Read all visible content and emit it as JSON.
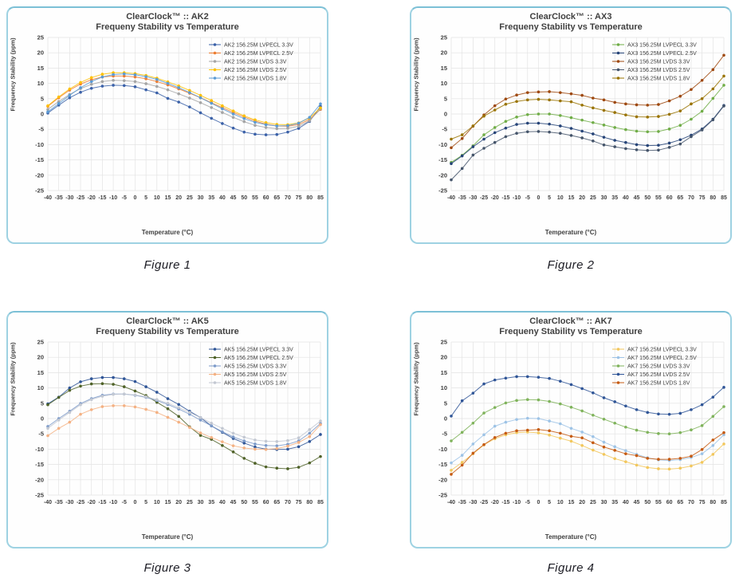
{
  "page": {
    "background": "#ffffff",
    "panel_border_color": "#9ed2e2",
    "grid_color": "#e3e3e3",
    "text_color": "#404040"
  },
  "figures": [
    {
      "caption": "Figure 1"
    },
    {
      "caption": "Figure 2"
    },
    {
      "caption": "Figure 3"
    },
    {
      "caption": "Figure 4"
    }
  ],
  "chart_data": [
    {
      "type": "line",
      "title": "ClearClock™ :: AK2",
      "subtitle": "Frequeny Stability vs Temperature",
      "xlabel": "Temperature (°C)",
      "ylabel": "Frequency Stability (ppm)",
      "xlim": [
        -40,
        85
      ],
      "ylim": [
        -25,
        25
      ],
      "ytick_step": 5,
      "xtick_step": 5,
      "grid": true,
      "legend_position": "top-right",
      "x": [
        -40,
        -35,
        -30,
        -25,
        -20,
        -15,
        -10,
        -5,
        0,
        5,
        10,
        15,
        20,
        25,
        30,
        35,
        40,
        45,
        50,
        55,
        60,
        65,
        70,
        75,
        80,
        85
      ],
      "series": [
        {
          "name": "AK2 156.25M LVPECL 3.3V",
          "color": "#3b61a8",
          "values": [
            0.3,
            2.9,
            5.3,
            7.1,
            8.4,
            9.1,
            9.4,
            9.3,
            8.9,
            7.9,
            6.9,
            5.1,
            3.9,
            2.3,
            0.4,
            -1.4,
            -3.1,
            -4.6,
            -5.9,
            -6.6,
            -6.8,
            -6.7,
            -5.9,
            -4.7,
            -2.4,
            2.5
          ]
        },
        {
          "name": "AK2 156.25M LVPECL 2.5V",
          "color": "#ed7d31",
          "values": [
            2.5,
            5.3,
            7.8,
            9.8,
            11.2,
            12.1,
            12.4,
            12.4,
            12.1,
            11.5,
            10.6,
            9.5,
            8.2,
            6.8,
            5.3,
            3.7,
            2.1,
            0.5,
            -1.0,
            -2.3,
            -3.3,
            -3.9,
            -4.0,
            -3.4,
            -1.8,
            1.5
          ]
        },
        {
          "name": "AK2 156.25M LVDS 3.3V",
          "color": "#a5a5a5",
          "values": [
            1.5,
            4.1,
            6.4,
            8.3,
            9.7,
            10.6,
            11.0,
            10.9,
            10.6,
            9.9,
            9.0,
            7.9,
            6.6,
            5.2,
            3.7,
            2.1,
            0.5,
            -1.1,
            -2.5,
            -3.7,
            -4.4,
            -4.8,
            -4.7,
            -4.0,
            -2.2,
            1.7
          ]
        },
        {
          "name": "AK2 156.25M LVDS 2.5V",
          "color": "#ffc000",
          "values": [
            2.7,
            5.6,
            8.2,
            10.3,
            11.9,
            13.0,
            13.5,
            13.5,
            13.2,
            12.6,
            11.7,
            10.5,
            9.2,
            7.7,
            6.1,
            4.4,
            2.7,
            1.0,
            -0.6,
            -1.9,
            -2.8,
            -3.4,
            -3.5,
            -2.9,
            -1.3,
            2.0
          ]
        },
        {
          "name": "AK2 156.25M LVDS 1.8V",
          "color": "#5b9bd5",
          "values": [
            0.7,
            3.4,
            6.1,
            8.6,
            10.6,
            12.1,
            12.9,
            13.1,
            12.8,
            12.2,
            11.3,
            10.0,
            8.6,
            7.0,
            5.3,
            3.5,
            1.7,
            0.0,
            -1.5,
            -2.7,
            -3.5,
            -3.9,
            -3.8,
            -3.0,
            -1.1,
            3.3
          ]
        }
      ]
    },
    {
      "type": "line",
      "title": "ClearClock™ :: AX3",
      "subtitle": "Frequeny Stability vs Temperature",
      "xlabel": "Temperature (°C)",
      "ylabel": "Frequency Stability (ppm)",
      "xlim": [
        -40,
        85
      ],
      "ylim": [
        -25,
        25
      ],
      "ytick_step": 5,
      "xtick_step": 5,
      "grid": true,
      "legend_position": "top-right",
      "x": [
        -40,
        -35,
        -30,
        -25,
        -20,
        -15,
        -10,
        -5,
        0,
        5,
        10,
        15,
        20,
        25,
        30,
        35,
        40,
        45,
        50,
        55,
        60,
        65,
        70,
        75,
        80,
        85
      ],
      "series": [
        {
          "name": "AX3 156.25M LVPECL 3.3V",
          "color": "#70ad47",
          "values": [
            -15.8,
            -13.5,
            -10.4,
            -6.8,
            -4.4,
            -2.4,
            -1.0,
            -0.2,
            0.0,
            0.0,
            -0.5,
            -1.2,
            -2.0,
            -2.8,
            -3.6,
            -4.4,
            -5.1,
            -5.6,
            -5.8,
            -5.7,
            -4.9,
            -3.7,
            -1.7,
            0.9,
            5.1,
            9.4
          ]
        },
        {
          "name": "AX3 156.25M LVPECL 2.5V",
          "color": "#264478",
          "values": [
            -16.2,
            -13.7,
            -10.7,
            -8.2,
            -6.1,
            -4.6,
            -3.4,
            -3.0,
            -3.0,
            -3.3,
            -3.9,
            -4.7,
            -5.6,
            -6.5,
            -7.6,
            -8.6,
            -9.3,
            -10.0,
            -10.3,
            -10.2,
            -9.5,
            -8.4,
            -6.9,
            -4.9,
            -1.7,
            2.8
          ]
        },
        {
          "name": "AX3 156.25M LVDS 3.3V",
          "color": "#9e480e",
          "values": [
            -11.0,
            -8.0,
            -4.0,
            -0.3,
            2.7,
            4.9,
            6.2,
            7.0,
            7.2,
            7.3,
            7.0,
            6.6,
            6.1,
            5.2,
            4.6,
            3.8,
            3.3,
            3.0,
            2.9,
            3.1,
            4.3,
            5.8,
            8.0,
            11.0,
            14.5,
            19.2
          ]
        },
        {
          "name": "AX3 156.25M LVDS 2.5V",
          "color": "#44546a",
          "values": [
            -21.5,
            -17.8,
            -13.4,
            -11.2,
            -9.3,
            -7.4,
            -6.3,
            -5.8,
            -5.7,
            -5.9,
            -6.3,
            -7.0,
            -7.8,
            -8.8,
            -10.1,
            -10.7,
            -11.3,
            -11.7,
            -11.9,
            -11.8,
            -10.9,
            -9.8,
            -7.4,
            -5.2,
            -1.9,
            2.6
          ]
        },
        {
          "name": "AX3 156.25M LVDS 1.8V",
          "color": "#997300",
          "values": [
            -8.2,
            -6.8,
            -3.9,
            -0.7,
            1.3,
            3.2,
            4.1,
            4.6,
            4.8,
            4.6,
            4.3,
            4.0,
            2.9,
            2.0,
            1.2,
            0.5,
            -0.3,
            -0.9,
            -1.0,
            -0.8,
            -0.1,
            1.0,
            3.3,
            5.0,
            8.2,
            12.4
          ]
        }
      ]
    },
    {
      "type": "line",
      "title": "ClearClock™ :: AK5",
      "subtitle": "Frequeny Stability vs Temperature",
      "xlabel": "Temperature (°C)",
      "ylabel": "Frequency Stability (ppm)",
      "xlim": [
        -40,
        85
      ],
      "ylim": [
        -25,
        25
      ],
      "ytick_step": 5,
      "xtick_step": 5,
      "grid": true,
      "legend_position": "top-right",
      "x": [
        -40,
        -35,
        -30,
        -25,
        -20,
        -15,
        -10,
        -5,
        0,
        5,
        10,
        15,
        20,
        25,
        30,
        35,
        40,
        45,
        50,
        55,
        60,
        65,
        70,
        75,
        80,
        85
      ],
      "series": [
        {
          "name": "AK5 156.25M LVPECL 3.3V",
          "color": "#2f5597",
          "values": [
            4.8,
            7.0,
            10.0,
            12.0,
            13.0,
            13.4,
            13.4,
            13.0,
            12.1,
            10.4,
            8.6,
            6.5,
            4.6,
            2.4,
            0.3,
            -2.4,
            -4.5,
            -6.5,
            -8.0,
            -9.3,
            -10.0,
            -10.1,
            -10.0,
            -9.2,
            -7.5,
            -5.2
          ]
        },
        {
          "name": "AK5 156.25M LVPECL 2.5V",
          "color": "#4f6228",
          "values": [
            4.5,
            6.9,
            9.2,
            10.6,
            11.3,
            11.4,
            11.2,
            10.4,
            9.0,
            7.5,
            5.3,
            3.2,
            0.7,
            -2.7,
            -5.5,
            -6.8,
            -8.8,
            -10.9,
            -13.0,
            -14.6,
            -15.8,
            -16.2,
            -16.4,
            -15.9,
            -14.5,
            -12.4
          ]
        },
        {
          "name": "AK5 156.25M LVDS 3.3V",
          "color": "#7c9ac9",
          "values": [
            -2.6,
            0.0,
            2.4,
            4.9,
            6.5,
            7.6,
            8.0,
            8.0,
            7.6,
            6.9,
            5.9,
            4.6,
            3.1,
            1.4,
            -0.5,
            -2.4,
            -4.3,
            -6.0,
            -7.3,
            -8.3,
            -8.8,
            -8.9,
            -8.4,
            -7.3,
            -4.8,
            -1.6
          ]
        },
        {
          "name": "AK5 156.25M LVDS 2.5V",
          "color": "#f4b183",
          "values": [
            -5.6,
            -3.2,
            -1.2,
            1.4,
            2.9,
            3.9,
            4.2,
            4.2,
            3.8,
            3.0,
            2.0,
            0.4,
            -1.2,
            -2.9,
            -4.7,
            -6.2,
            -7.6,
            -8.9,
            -9.6,
            -10.0,
            -10.1,
            -9.8,
            -9.0,
            -7.8,
            -5.9,
            -2.0
          ]
        },
        {
          "name": "AK5 156.25M LVDS 1.8V",
          "color": "#c3c8d2",
          "values": [
            -3.2,
            -0.5,
            2.0,
            4.5,
            6.2,
            7.3,
            7.9,
            8.0,
            7.7,
            7.1,
            6.2,
            5.0,
            3.6,
            2.0,
            0.3,
            -1.5,
            -3.2,
            -4.8,
            -6.1,
            -7.0,
            -7.4,
            -7.5,
            -7.2,
            -6.3,
            -3.6,
            -0.8
          ]
        }
      ]
    },
    {
      "type": "line",
      "title": "ClearClock™ :: AK7",
      "subtitle": "Frequeny Stability vs Temperature",
      "xlabel": "Temperature (°C)",
      "ylabel": "Frequency Stability (ppm)",
      "xlim": [
        -40,
        85
      ],
      "ylim": [
        -25,
        25
      ],
      "ytick_step": 5,
      "xtick_step": 5,
      "grid": true,
      "legend_position": "top-right",
      "x": [
        -40,
        -35,
        -30,
        -25,
        -20,
        -15,
        -10,
        -5,
        0,
        5,
        10,
        15,
        20,
        25,
        30,
        35,
        40,
        45,
        50,
        55,
        60,
        65,
        70,
        75,
        80,
        85
      ],
      "series": [
        {
          "name": "AK7 156.25M LVPECL 3.3V",
          "color": "#f2c75c",
          "values": [
            -16.9,
            -14.3,
            -11.5,
            -8.6,
            -6.6,
            -5.3,
            -4.6,
            -4.4,
            -4.7,
            -5.4,
            -6.4,
            -7.4,
            -8.8,
            -10.3,
            -11.7,
            -13.1,
            -14.1,
            -15.2,
            -16.0,
            -16.4,
            -16.5,
            -16.2,
            -15.5,
            -14.3,
            -11.7,
            -8.3
          ]
        },
        {
          "name": "AK7 156.25M LVPECL 2.5V",
          "color": "#9dc3e6",
          "values": [
            -14.5,
            -12.0,
            -8.3,
            -5.3,
            -2.5,
            -1.2,
            -0.3,
            0.1,
            0.0,
            -0.8,
            -1.7,
            -3.2,
            -4.4,
            -5.9,
            -7.7,
            -9.2,
            -10.5,
            -11.7,
            -12.8,
            -13.5,
            -13.7,
            -13.4,
            -12.7,
            -11.5,
            -8.8,
            -5.3
          ]
        },
        {
          "name": "AK7 156.25M LVDS 3.3V",
          "color": "#7fb35b",
          "values": [
            -7.3,
            -4.5,
            -1.5,
            1.8,
            3.6,
            5.1,
            5.9,
            6.2,
            6.1,
            5.6,
            4.8,
            3.7,
            2.5,
            1.1,
            -0.2,
            -1.5,
            -2.8,
            -3.8,
            -4.5,
            -4.9,
            -5.0,
            -4.6,
            -3.7,
            -2.3,
            0.7,
            3.9
          ]
        },
        {
          "name": "AK7 156.25M LVDS 2.5V",
          "color": "#2f5597",
          "values": [
            0.8,
            5.8,
            8.3,
            11.3,
            12.6,
            13.2,
            13.7,
            13.7,
            13.5,
            13.1,
            12.2,
            11.1,
            9.8,
            8.4,
            6.8,
            5.5,
            4.1,
            2.9,
            2.0,
            1.5,
            1.4,
            1.7,
            2.9,
            4.5,
            7.0,
            10.2
          ]
        },
        {
          "name": "AK7 156.25M LVDS 1.8V",
          "color": "#c55a11",
          "values": [
            -18.2,
            -15.2,
            -11.3,
            -8.5,
            -6.2,
            -4.8,
            -4.0,
            -3.8,
            -3.6,
            -4.0,
            -4.8,
            -5.8,
            -6.3,
            -7.9,
            -9.3,
            -10.4,
            -11.5,
            -12.1,
            -13.0,
            -13.3,
            -13.3,
            -13.0,
            -12.3,
            -10.1,
            -7.0,
            -4.6
          ]
        }
      ]
    }
  ]
}
